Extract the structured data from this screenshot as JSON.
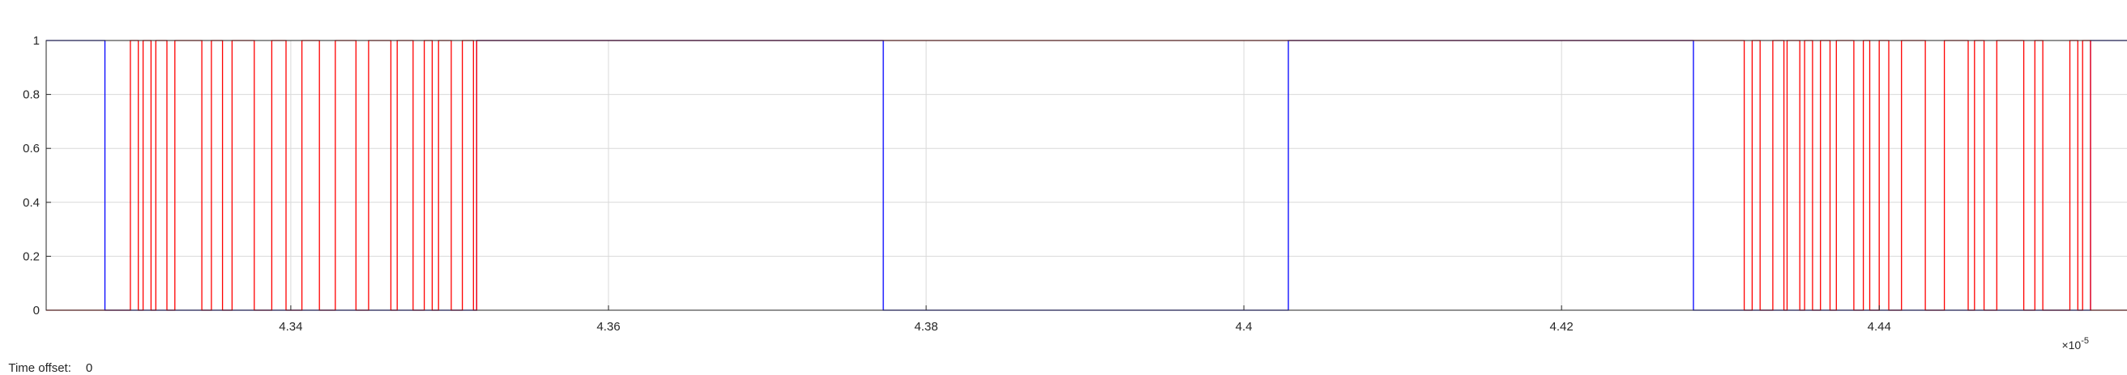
{
  "status": {
    "time_offset_label": "Time offset:",
    "time_offset_value": "0"
  },
  "chart_data": {
    "type": "line",
    "step": true,
    "grid": true,
    "xlim": [
      4.3246,
      4.4557
    ],
    "ylim": [
      0,
      1
    ],
    "x_scale_exponent": "-5",
    "x_scale_prefix": "×10",
    "x_ticks": [
      4.34,
      4.36,
      4.38,
      4.4,
      4.42,
      4.44
    ],
    "x_tick_labels": [
      "4.34",
      "4.36",
      "4.38",
      "4.4",
      "4.42",
      "4.44"
    ],
    "y_ticks": [
      0,
      0.2,
      0.4,
      0.6,
      0.8,
      1
    ],
    "y_tick_labels": [
      "0",
      "0.2",
      "0.4",
      "0.6",
      "0.8",
      "1"
    ],
    "series": [
      {
        "color": "#0000ff",
        "transitions": [
          4.3283,
          4.3517,
          4.3773,
          4.4028,
          4.4283,
          4.4533
        ],
        "initial": 1
      },
      {
        "color": "#ff0000",
        "transitions": [
          4.3299,
          4.3304,
          4.3307,
          4.3312,
          4.3315,
          4.3322,
          4.3327,
          4.3344,
          4.335,
          4.3357,
          4.3363,
          4.3377,
          4.3388,
          4.3397,
          4.3407,
          4.3418,
          4.3428,
          4.3441,
          4.3449,
          4.3463,
          4.3467,
          4.3477,
          4.3484,
          4.3489,
          4.3493,
          4.3501,
          4.3508,
          4.3515,
          4.3517,
          4.4315,
          4.432,
          4.4325,
          4.4333,
          4.434,
          4.4342,
          4.435,
          4.4353,
          4.4358,
          4.4363,
          4.4369,
          4.4373,
          4.4384,
          4.439,
          4.4394,
          4.44,
          4.4406,
          4.4414,
          4.4429,
          4.4441,
          4.4456,
          4.446,
          4.4466,
          4.4474,
          4.4491,
          4.4498,
          4.4503,
          4.452,
          4.4525,
          4.4528,
          4.4533
        ],
        "initial": 0
      }
    ]
  }
}
